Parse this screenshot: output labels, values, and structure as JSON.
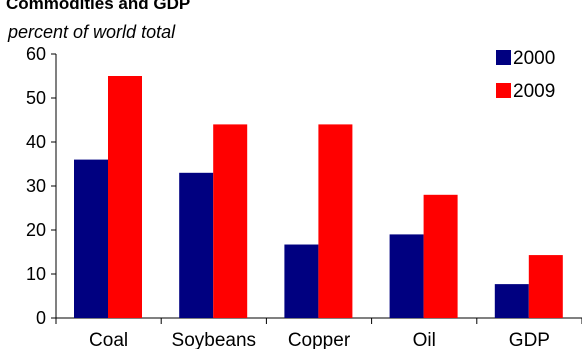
{
  "chart_data": {
    "type": "bar",
    "title": "Commodities and GDP",
    "subtitle": "percent of world total",
    "categories": [
      "Coal",
      "Soybeans",
      "Copper",
      "Oil",
      "GDP"
    ],
    "series": [
      {
        "name": "2000",
        "values": [
          36,
          33,
          16.7,
          19,
          7.7
        ],
        "color": "#000080"
      },
      {
        "name": "2009",
        "values": [
          55,
          44,
          44,
          28,
          14.3
        ],
        "color": "#ff0000"
      }
    ],
    "ylim": [
      0,
      60
    ],
    "yticks": [
      0,
      10,
      20,
      30,
      40,
      50,
      60
    ],
    "grid": false,
    "legend_position": "top-right"
  }
}
